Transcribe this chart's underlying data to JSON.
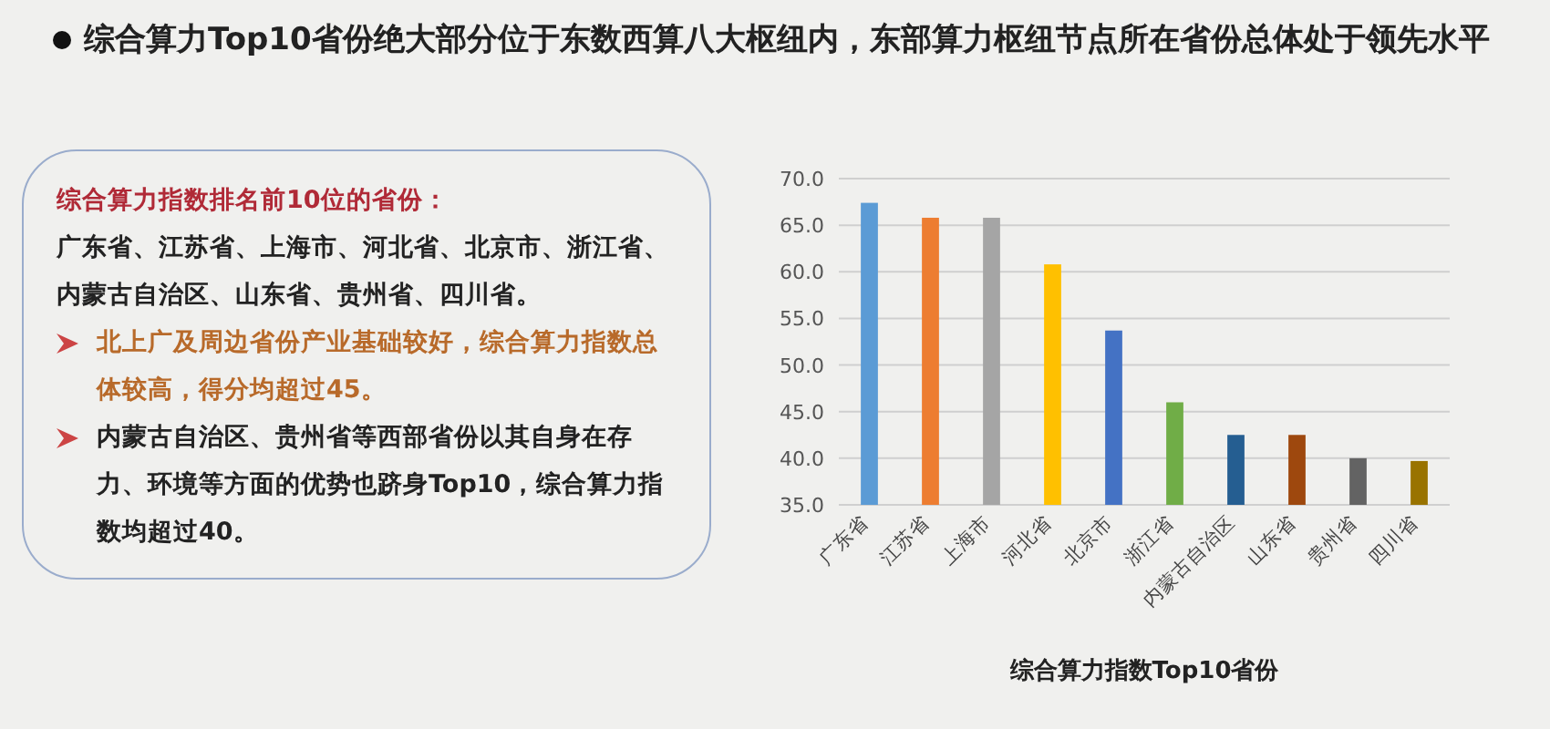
{
  "chart_data": {
    "type": "bar",
    "title": "综合算力Top10省份绝大部分位于东数西算八大枢纽内，东部算力枢纽节点所在省份总体处于领先水平",
    "xlabel": "综合算力指数Top10省份",
    "categories": [
      "广东省",
      "江苏省",
      "上海市",
      "河北省",
      "北京市",
      "浙江省",
      "内蒙古自治区",
      "山东省",
      "贵州省",
      "四川省"
    ],
    "values": [
      67.4,
      65.8,
      65.8,
      60.8,
      53.7,
      46.0,
      42.5,
      42.5,
      40.0,
      39.7
    ],
    "colors": [
      "#5b9bd5",
      "#ed7d31",
      "#a5a5a5",
      "#ffc000",
      "#4472c4",
      "#70ad47",
      "#255e91",
      "#9e480e",
      "#636363",
      "#997300"
    ],
    "ylim": [
      35,
      70
    ],
    "yticks": [
      {
        "value": 35,
        "label": "35.0"
      },
      {
        "value": 40,
        "label": "40.0"
      },
      {
        "value": 45,
        "label": "45.0"
      },
      {
        "value": 50,
        "label": "50.0"
      },
      {
        "value": 55,
        "label": "55.0"
      },
      {
        "value": 60,
        "label": "60.0"
      },
      {
        "value": 65,
        "label": "65.0"
      },
      {
        "value": 70,
        "label": "70.0"
      }
    ],
    "grid": "y",
    "annotations": [
      "综合算力指数排名前10位的省份：",
      "广东省、江苏省、上海市、河北省、北京市、浙江省、内蒙古自治区、山东省、贵州省、四川省。",
      "北上广及周边省份产业基础较好，综合算力指数总体较高，得分均超过45。",
      "内蒙古自治区、贵州省等西部省份以其自身在存力、环境等方面的优势也跻身Top10，综合算力指数均超过40。"
    ]
  }
}
